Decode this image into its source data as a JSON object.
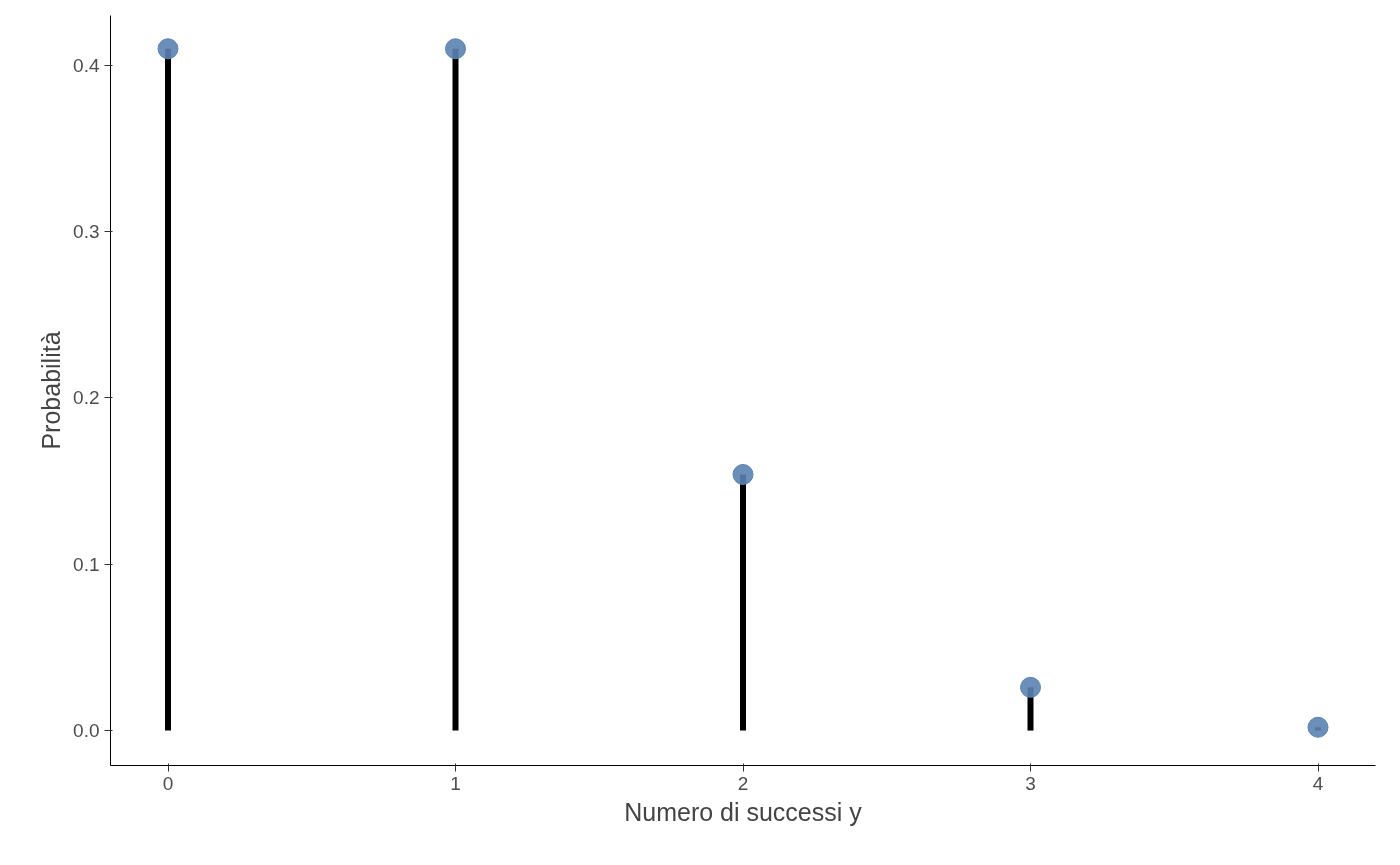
{
  "chart_data": {
    "type": "lollipop",
    "xlabel": "Numero di successi y",
    "ylabel": "Probabilità",
    "x": [
      0,
      1,
      2,
      3,
      4
    ],
    "series": [
      {
        "color": "#5b83b1",
        "values": [
          0.41,
          0.41,
          0.154,
          0.026,
          0.002
        ]
      }
    ],
    "xlim": [
      -0.2,
      4.2
    ],
    "xticks": [
      0,
      1,
      2,
      3,
      4
    ],
    "ylim": [
      -0.021,
      0.43
    ],
    "yticks": [
      {
        "value": 0,
        "label": "0.0"
      },
      {
        "value": 0.1,
        "label": "0.1"
      },
      {
        "value": 0.2,
        "label": "0.2"
      },
      {
        "value": 0.3,
        "label": "0.3"
      },
      {
        "value": 0.4,
        "label": "0.4"
      }
    ],
    "marker": "circle"
  }
}
